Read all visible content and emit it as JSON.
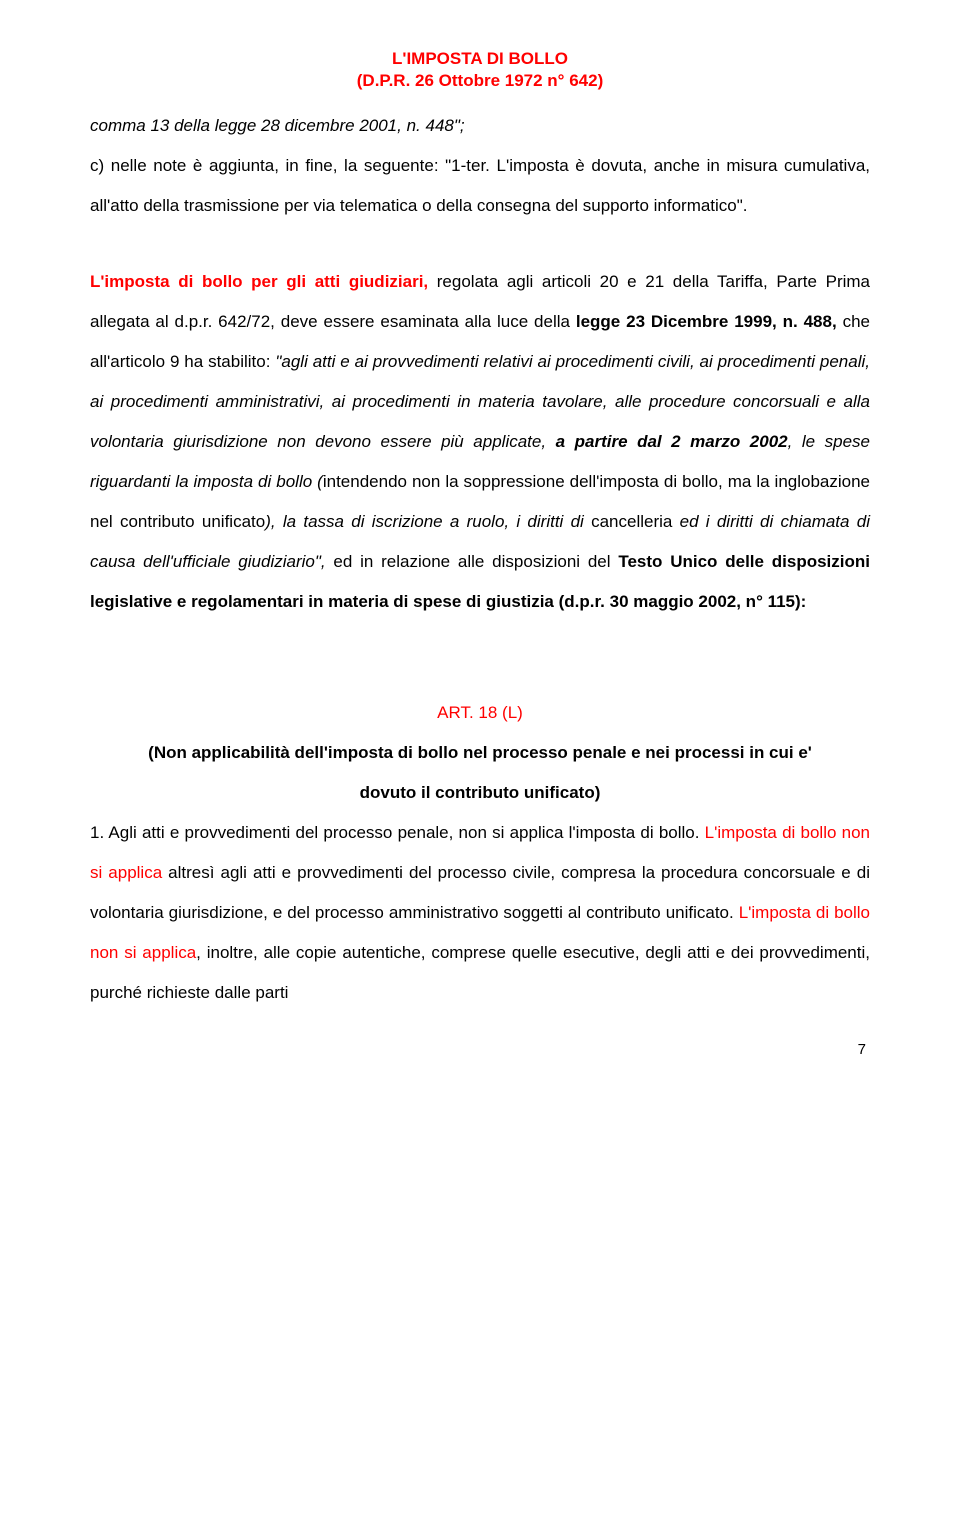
{
  "header": {
    "title": "L'IMPOSTA DI BOLLO",
    "subtitle": "(D.P.R. 26 Ottobre 1972 n° 642)"
  },
  "para1": {
    "t1": "comma 13 della legge 28 dicembre 2001, n. 448\";",
    "t2": "c) nelle note è aggiunta, in fine, la seguente: \"1-ter. L'imposta è dovuta, anche in misura cumulativa, all'atto della trasmissione per via telematica o della consegna del supporto informatico\"."
  },
  "para2": {
    "s1a": "L'imposta di bollo per gli atti giudiziari,",
    "s1b": " regolata agli articoli 20 e 21 della Tariffa, Parte Prima allegata al d.p.r. 642/72, deve essere esaminata alla luce della ",
    "s1c": "legge 23 Dicembre 1999, n. 488,",
    "s1d": " che all'articolo 9 ha stabilito: ",
    "s1e": "\"agli atti e ai provvedimenti relativi ai procedimenti civili, ai procedimenti penali, ai procedimenti amministrativi, ai procedimenti in materia tavolare, alle procedure concorsuali e alla volontaria giurisdizione non devono essere più applicate, ",
    "s1f": "a partire dal 2 marzo 2002",
    "s1g": ", le spese riguardanti la imposta di bollo (",
    "s1h": "intendendo non la soppressione dell'imposta di bollo, ma la inglobazione nel contributo unificato",
    "s1i": "), la tassa di iscrizione a ruolo, i diritti di ",
    "s1j": "cancelleria",
    "s1k": " ed i diritti di chiamata di causa dell'ufficiale giudiziario\",",
    "s1l": " ed in relazione alle disposizioni del ",
    "s1m": "Testo Unico delle disposizioni legislative e regolamentari in materia di spese di giustizia (d.p.r. 30 maggio 2002, n° 115):"
  },
  "art": {
    "heading": "ART. 18 (L)",
    "sub1": "(Non applicabilità dell'imposta di bollo nel processo penale e nei processi in cui e'",
    "sub2": "dovuto il contributo unificato)"
  },
  "para3": {
    "t1": "1. Agli atti e provvedimenti del processo penale, non si applica l'imposta di bollo. ",
    "t2": "L'imposta di bollo non si applica",
    "t3": " altresì agli atti e provvedimenti del processo civile, compresa la procedura concorsuale e di volontaria giurisdizione, e del processo amministrativo soggetti al contributo unificato. ",
    "t4": "L'imposta di bollo non si applica",
    "t5": ", inoltre, alle copie autentiche, comprese quelle esecutive, degli atti e dei provvedimenti, purché richieste dalle parti"
  },
  "pageNumber": "7",
  "colors": {
    "text": "#000000",
    "red": "#ff0000",
    "background": "#ffffff"
  },
  "typography": {
    "title_fontsize": 17,
    "body_fontsize": 17,
    "line_height": 2.35,
    "font_family": "Arial"
  }
}
